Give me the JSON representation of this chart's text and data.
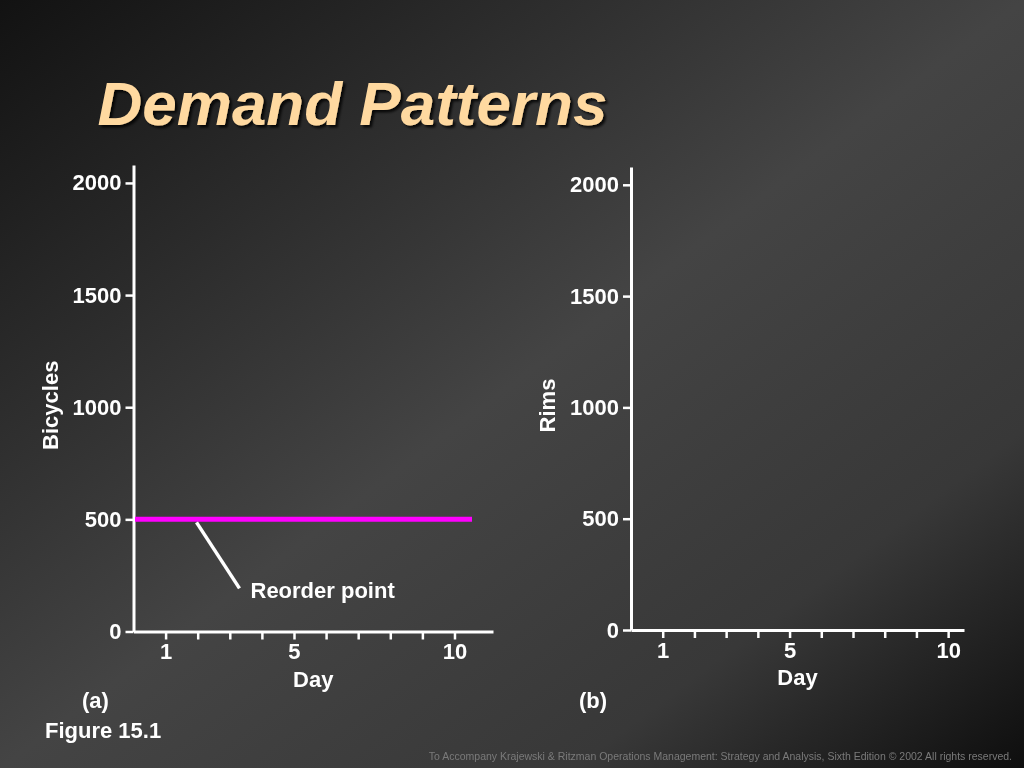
{
  "chart_data": [
    {
      "type": "line",
      "title": "Demand Patterns",
      "xlabel": "Day",
      "ylabel": "Bicycles",
      "xlim": [
        0,
        11.2
      ],
      "xticks": [
        1,
        {
          "value": 2,
          "label": null
        },
        {
          "value": 3,
          "label": null
        },
        {
          "value": 4,
          "label": null
        },
        5,
        {
          "value": 6,
          "label": null
        },
        {
          "value": 7,
          "label": null
        },
        {
          "value": 8,
          "label": null
        },
        {
          "value": 9,
          "label": null
        },
        10
      ],
      "ylim": [
        0,
        2080
      ],
      "yticks": [
        0,
        500,
        1000,
        1500,
        2000
      ],
      "ref_lines": [
        {
          "axis": "y",
          "value": 500,
          "label": "Reorder point",
          "color": "#ff00ff"
        }
      ],
      "annotations": [
        "(a)",
        "Figure 15.1"
      ]
    },
    {
      "type": "line",
      "xlabel": "Day",
      "ylabel": "Rims",
      "xlim": [
        0,
        10.5
      ],
      "xticks": [
        1,
        {
          "value": 2,
          "label": null
        },
        {
          "value": 3,
          "label": null
        },
        {
          "value": 4,
          "label": null
        },
        5,
        {
          "value": 6,
          "label": null
        },
        {
          "value": 7,
          "label": null
        },
        {
          "value": 8,
          "label": null
        },
        {
          "value": 9,
          "label": null
        },
        10
      ],
      "ylim": [
        0,
        2080
      ],
      "yticks": [
        0,
        500,
        1000,
        1500,
        2000
      ],
      "annotations": [
        "(b)",
        "To Accompany Krajewski & Ritzman Operations Management: Strategy and Analysis, Sixth Edition © 2002 All rights reserved."
      ]
    }
  ]
}
